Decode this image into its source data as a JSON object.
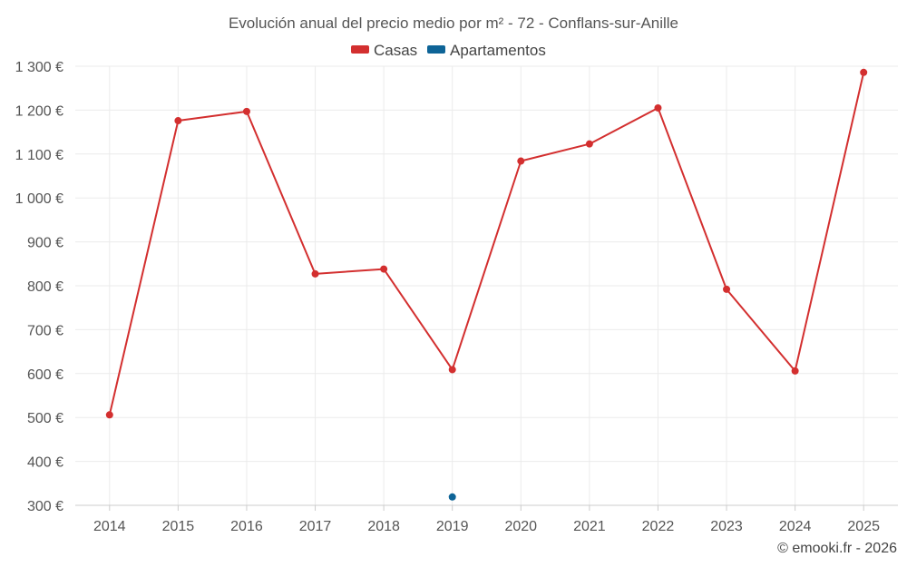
{
  "chart_data": {
    "type": "line",
    "title": "Evolución anual del precio medio por m² - 72 - Conflans-sur-Anille",
    "categories": [
      "2014",
      "2015",
      "2016",
      "2017",
      "2018",
      "2019",
      "2020",
      "2021",
      "2022",
      "2023",
      "2024",
      "2025"
    ],
    "y_ticks": [
      "300 €",
      "400 €",
      "500 €",
      "600 €",
      "700 €",
      "800 €",
      "900 €",
      "1 000 €",
      "1 100 €",
      "1 200 €",
      "1 300 €"
    ],
    "ylim": [
      300,
      1300
    ],
    "y_step": 100,
    "legend_position": "top-center",
    "grid": true,
    "series": [
      {
        "name": "Casas",
        "color": "#d32f2f",
        "values": [
          506,
          1176,
          1197,
          827,
          838,
          609,
          1084,
          1123,
          1205,
          792,
          606,
          1286
        ]
      },
      {
        "name": "Apartamentos",
        "color": "#0e6497",
        "values": [
          null,
          null,
          null,
          null,
          null,
          319,
          null,
          null,
          null,
          null,
          null,
          null
        ]
      }
    ]
  },
  "credit": "© emooki.fr - 2026"
}
